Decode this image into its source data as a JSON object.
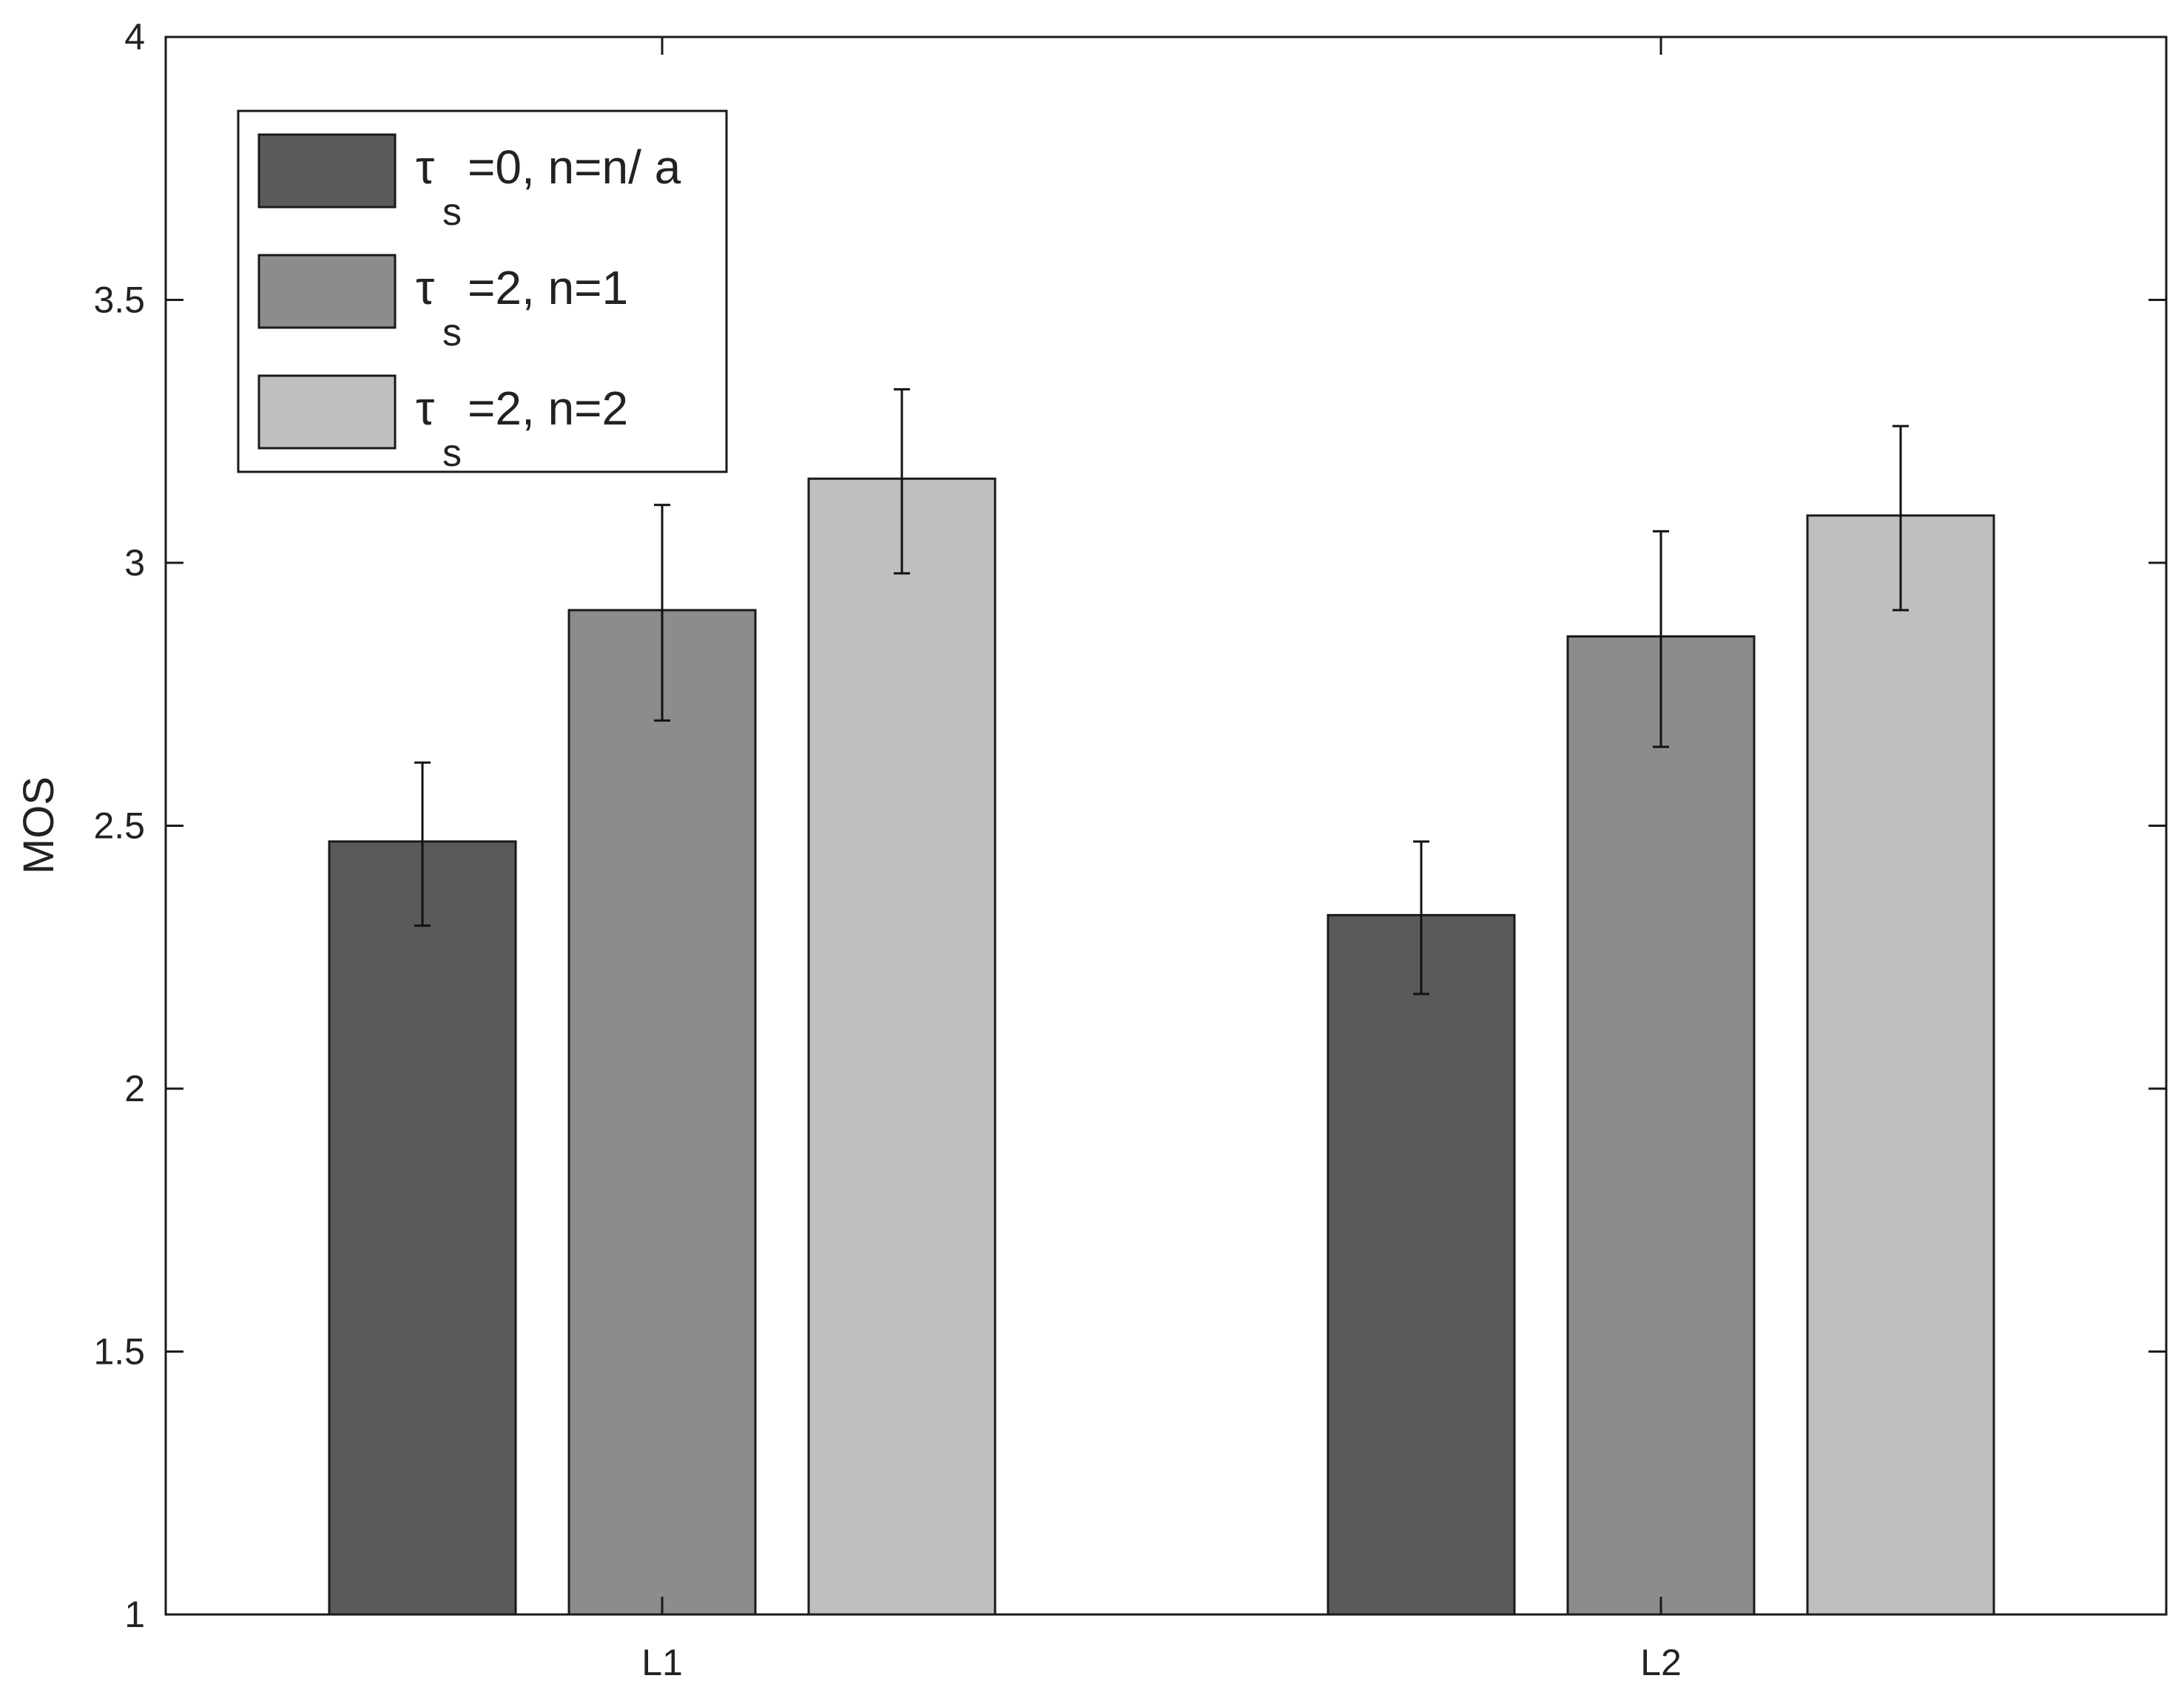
{
  "chart_data": {
    "type": "bar",
    "title": "",
    "xlabel": "",
    "ylabel": "MOS",
    "ylim": [
      1,
      4
    ],
    "yticks": [
      "1",
      "1.5",
      "2",
      "2.5",
      "3",
      "3.5",
      "4"
    ],
    "categories": [
      "L1",
      "L2"
    ],
    "grid": false,
    "legend_position": "top-left",
    "series": [
      {
        "name": "τ s =0, n=n/ a",
        "symbol": "τ",
        "subscript": "s",
        "rest": "=0, n=n/ a",
        "color": "#5a5a5a",
        "values": [
          2.47,
          2.33
        ],
        "err_low": [
          2.31,
          2.18
        ],
        "err_high": [
          2.62,
          2.47
        ]
      },
      {
        "name": "τ s =2, n=1",
        "symbol": "τ",
        "subscript": "s",
        "rest": "=2, n=1",
        "color": "#8c8c8c",
        "values": [
          2.91,
          2.86
        ],
        "err_low": [
          2.7,
          2.65
        ],
        "err_high": [
          3.11,
          3.06
        ]
      },
      {
        "name": "τ s =2, n=2",
        "symbol": "τ",
        "subscript": "s",
        "rest": "=2, n=2",
        "color": "#bfbfbf",
        "values": [
          3.16,
          3.09
        ],
        "err_low": [
          2.98,
          2.91
        ],
        "err_high": [
          3.33,
          3.26
        ]
      }
    ]
  }
}
